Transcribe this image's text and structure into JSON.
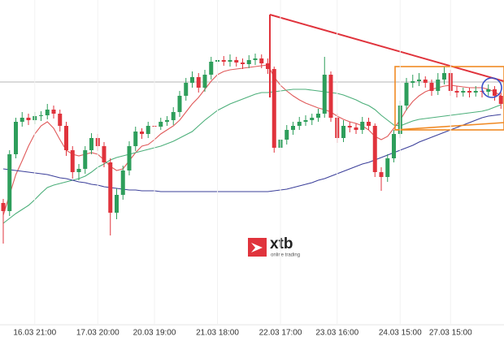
{
  "chart_data": {
    "type": "candlestick",
    "ylim": [
      0,
      400
    ],
    "categories": [
      null,
      null,
      null,
      null,
      null,
      "16.03 21:00",
      null,
      null,
      null,
      null,
      null,
      null,
      null,
      null,
      null,
      "17.03 20:00",
      null,
      null,
      null,
      null,
      null,
      null,
      null,
      null,
      "20.03 19:00",
      null,
      null,
      null,
      null,
      null,
      null,
      null,
      null,
      null,
      "21.03 18:00",
      null,
      null,
      null,
      null,
      null,
      null,
      null,
      null,
      null,
      "22.03 17:00",
      null,
      null,
      null,
      null,
      null,
      null,
      null,
      null,
      "23.03 16:00",
      null,
      null,
      null,
      null,
      null,
      null,
      null,
      null,
      null,
      "24.03 15:00",
      null,
      null,
      null,
      null,
      null,
      null,
      null,
      "27.03 15:00",
      null,
      null,
      null,
      null,
      null,
      null,
      null,
      null
    ],
    "open": [
      150,
      140,
      210,
      250,
      255,
      252,
      257,
      258,
      265,
      260,
      245,
      215,
      188,
      192,
      215,
      230,
      220,
      200,
      138,
      160,
      190,
      220,
      238,
      235,
      245,
      244,
      250,
      252,
      262,
      282,
      298,
      305,
      292,
      308,
      324,
      326,
      324,
      326,
      323,
      321,
      326,
      328,
      322,
      315,
      218,
      228,
      240,
      245,
      250,
      252,
      255,
      260,
      308,
      255,
      230,
      245,
      243,
      240,
      250,
      245,
      188,
      182,
      205,
      235,
      270,
      298,
      300,
      302,
      298,
      288,
      302,
      310,
      288,
      286,
      288,
      286,
      288,
      287,
      290,
      282
    ],
    "high": [
      155,
      215,
      255,
      262,
      260,
      262,
      263,
      272,
      270,
      265,
      250,
      220,
      198,
      220,
      236,
      235,
      225,
      205,
      168,
      196,
      226,
      244,
      242,
      250,
      250,
      255,
      257,
      268,
      288,
      304,
      312,
      310,
      314,
      330,
      332,
      331,
      333,
      330,
      328,
      332,
      334,
      333,
      328,
      318,
      236,
      246,
      250,
      256,
      258,
      260,
      266,
      330,
      312,
      260,
      252,
      250,
      248,
      256,
      255,
      248,
      194,
      210,
      240,
      276,
      304,
      308,
      310,
      306,
      302,
      310,
      318,
      314,
      294,
      292,
      292,
      294,
      292,
      296,
      294,
      286
    ],
    "low": [
      100,
      134,
      205,
      244,
      246,
      247,
      251,
      253,
      254,
      238,
      208,
      180,
      178,
      186,
      210,
      214,
      194,
      110,
      130,
      154,
      184,
      214,
      229,
      230,
      238,
      240,
      245,
      246,
      256,
      276,
      292,
      286,
      287,
      302,
      318,
      319,
      318,
      318,
      315,
      316,
      320,
      316,
      309,
      212,
      214,
      222,
      234,
      240,
      245,
      246,
      250,
      255,
      250,
      224,
      225,
      237,
      235,
      235,
      240,
      182,
      165,
      176,
      200,
      230,
      264,
      292,
      294,
      292,
      282,
      283,
      296,
      282,
      280,
      281,
      280,
      281,
      280,
      282,
      276,
      266
    ],
    "close": [
      140,
      210,
      250,
      255,
      252,
      257,
      258,
      265,
      260,
      245,
      215,
      188,
      192,
      215,
      230,
      220,
      200,
      138,
      160,
      190,
      220,
      238,
      235,
      245,
      244,
      250,
      252,
      262,
      282,
      298,
      305,
      292,
      308,
      324,
      326,
      324,
      326,
      323,
      321,
      326,
      328,
      322,
      315,
      218,
      228,
      240,
      245,
      250,
      252,
      255,
      260,
      308,
      255,
      230,
      245,
      243,
      240,
      250,
      245,
      188,
      182,
      205,
      235,
      270,
      298,
      300,
      302,
      298,
      288,
      302,
      310,
      288,
      286,
      288,
      286,
      288,
      287,
      290,
      282,
      272
    ],
    "up_color": "#2e9e5b",
    "down_color": "#e0333c",
    "series": [
      {
        "color": "#e05a5a",
        "values": [
          135,
          160,
          185,
          202,
          220,
          235,
          245,
          250,
          242,
          228,
          215,
          210,
          208,
          210,
          212,
          210,
          203,
          195,
          190,
          192,
          202,
          212,
          220,
          222,
          228,
          235,
          240,
          245,
          252,
          262,
          272,
          280,
          290,
          300,
          308,
          312,
          314,
          315,
          316,
          317,
          318,
          319,
          320,
          305,
          295,
          288,
          282,
          277,
          273,
          270,
          267,
          265,
          262,
          257,
          253,
          250,
          248,
          245,
          240,
          232,
          228,
          232,
          242,
          252,
          265,
          275,
          282,
          287,
          290,
          292,
          294,
          295,
          294,
          293,
          292,
          292,
          292,
          290,
          287,
          282
        ]
      },
      {
        "color": "#4caf7a",
        "values": [
          125,
          131,
          137,
          142,
          147,
          154,
          162,
          169,
          172,
          174,
          176,
          178,
          180,
          183,
          188,
          194,
          198,
          203,
          206,
          208,
          210,
          212,
          214,
          216,
          218,
          220,
          223,
          226,
          230,
          234,
          238,
          245,
          252,
          258,
          264,
          268,
          272,
          275,
          278,
          281,
          284,
          286,
          286,
          287,
          288,
          289,
          290,
          290,
          290,
          289,
          288,
          287,
          286,
          285,
          283,
          280,
          277,
          273,
          270,
          265,
          258,
          252,
          246,
          245,
          248,
          251,
          253,
          254,
          255,
          256,
          257,
          258,
          259,
          260,
          261,
          262,
          263,
          265,
          268,
          271
        ]
      },
      {
        "color": "#3b3f9a",
        "values": [
          192,
          191,
          190,
          189,
          188,
          187,
          186,
          185,
          183,
          181,
          180,
          178,
          176,
          175,
          173,
          172,
          170,
          169,
          168,
          167,
          166,
          166,
          165,
          165,
          165,
          164,
          164,
          164,
          164,
          164,
          164,
          164,
          164,
          164,
          164,
          164,
          164,
          164,
          164,
          164,
          164,
          164,
          164,
          165,
          166,
          167,
          169,
          171,
          173,
          175,
          178,
          180,
          183,
          186,
          189,
          192,
          195,
          198,
          200,
          203,
          206,
          209,
          212,
          215,
          218,
          221,
          225,
          228,
          231,
          234,
          237,
          240,
          243,
          246,
          249,
          252,
          255,
          257,
          258,
          259
        ]
      }
    ]
  },
  "watermark": {
    "brand": "xtb",
    "tagline": "online trading"
  }
}
